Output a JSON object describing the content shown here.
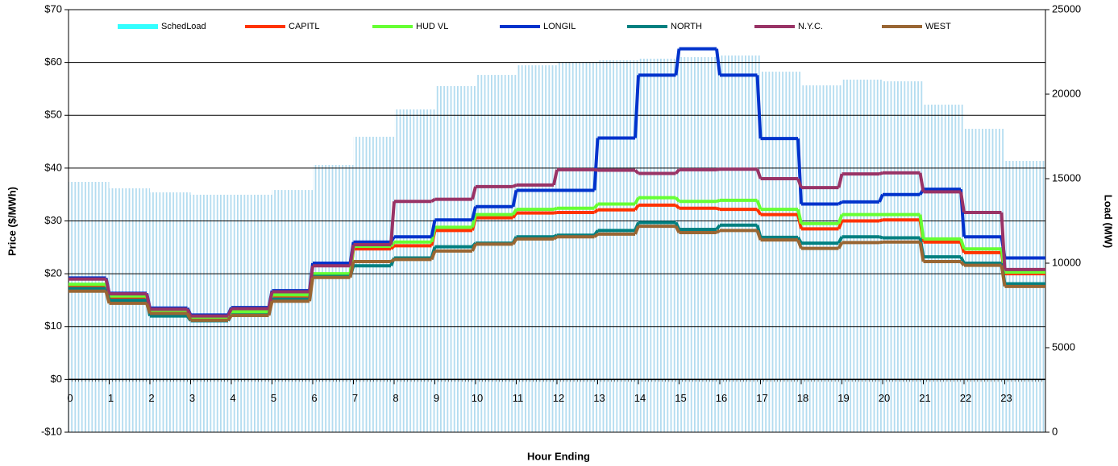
{
  "chart_data": {
    "type": "line",
    "xlabel": "Hour Ending",
    "ylabel": "Price ($/MWh)",
    "y2label": "Load (MW)",
    "x": [
      0,
      1,
      2,
      3,
      4,
      5,
      6,
      7,
      8,
      9,
      10,
      11,
      12,
      13,
      14,
      15,
      16,
      17,
      18,
      19,
      20,
      21,
      22,
      23
    ],
    "xlim": [
      0,
      24
    ],
    "xticks": [
      0,
      1,
      2,
      3,
      4,
      5,
      6,
      7,
      8,
      9,
      10,
      11,
      12,
      13,
      14,
      15,
      16,
      17,
      18,
      19,
      20,
      21,
      22,
      23
    ],
    "ylim": [
      -10,
      70
    ],
    "yticks": [
      {
        "value": -10,
        "label": "-$10"
      },
      {
        "value": 0,
        "label": "$0"
      },
      {
        "value": 10,
        "label": "$10"
      },
      {
        "value": 20,
        "label": "$20"
      },
      {
        "value": 30,
        "label": "$30"
      },
      {
        "value": 40,
        "label": "$40"
      },
      {
        "value": 50,
        "label": "$50"
      },
      {
        "value": 60,
        "label": "$60"
      },
      {
        "value": 70,
        "label": "$70"
      }
    ],
    "y2lim": [
      0,
      25000
    ],
    "y2ticks": [
      0,
      5000,
      10000,
      15000,
      20000,
      25000
    ],
    "grid": true,
    "legend": "upper center",
    "series": [
      {
        "name": "SchedLoad",
        "type": "bar",
        "axis": "y2",
        "color": "#b3dcf0",
        "legend_color": "#33ffff",
        "values": [
          14810,
          14430,
          14190,
          14050,
          14050,
          14330,
          15810,
          17480,
          19100,
          20480,
          21140,
          21710,
          21900,
          22000,
          22100,
          22190,
          22290,
          21330,
          20520,
          20860,
          20760,
          19380,
          17950,
          16050
        ]
      },
      {
        "name": "CAPITL",
        "color": "#ff3300",
        "values": [
          17.8,
          15.5,
          12.5,
          11.4,
          12.6,
          15.8,
          19.8,
          24.7,
          25.3,
          28.2,
          30.6,
          31.5,
          31.6,
          32.1,
          33.0,
          32.4,
          32.2,
          31.2,
          28.5,
          30.0,
          30.2,
          26.0,
          24.0,
          20.0
        ]
      },
      {
        "name": "HUD VL",
        "color": "#66ff33",
        "values": [
          18.0,
          15.8,
          12.8,
          11.6,
          12.8,
          16.0,
          20.0,
          25.2,
          26.0,
          28.8,
          31.2,
          32.2,
          32.4,
          33.2,
          34.4,
          33.7,
          33.9,
          32.2,
          29.5,
          31.2,
          31.2,
          26.6,
          24.7,
          20.3
        ]
      },
      {
        "name": "LONGIL",
        "color": "#0033cc",
        "values": [
          19.2,
          16.3,
          13.5,
          12.2,
          13.6,
          16.8,
          22.0,
          26.0,
          27.0,
          30.2,
          32.7,
          35.8,
          35.8,
          45.7,
          57.6,
          62.6,
          57.6,
          45.6,
          33.2,
          33.6,
          35.0,
          36.0,
          27.0,
          23.0
        ]
      },
      {
        "name": "NORTH",
        "color": "#008080",
        "values": [
          17.2,
          15.0,
          12.0,
          11.1,
          12.2,
          15.2,
          19.5,
          21.5,
          23.0,
          25.1,
          25.8,
          27.0,
          27.3,
          28.2,
          29.7,
          28.4,
          29.2,
          26.9,
          25.8,
          27.0,
          26.8,
          23.2,
          22.0,
          18.1
        ]
      },
      {
        "name": "N.Y.C.",
        "color": "#993366",
        "values": [
          19.0,
          16.2,
          13.3,
          12.0,
          13.4,
          16.6,
          21.5,
          25.5,
          33.7,
          34.1,
          36.5,
          36.8,
          39.7,
          39.6,
          39.0,
          39.7,
          39.8,
          38.0,
          36.3,
          38.9,
          39.1,
          35.5,
          31.6,
          20.8
        ]
      },
      {
        "name": "WEST",
        "color": "#996633",
        "values": [
          16.7,
          14.4,
          12.5,
          11.2,
          12.1,
          14.8,
          19.3,
          22.3,
          22.7,
          24.3,
          25.6,
          26.6,
          27.0,
          27.5,
          29.0,
          27.8,
          28.2,
          26.4,
          24.8,
          25.9,
          26.0,
          22.3,
          21.6,
          17.6
        ]
      }
    ]
  }
}
